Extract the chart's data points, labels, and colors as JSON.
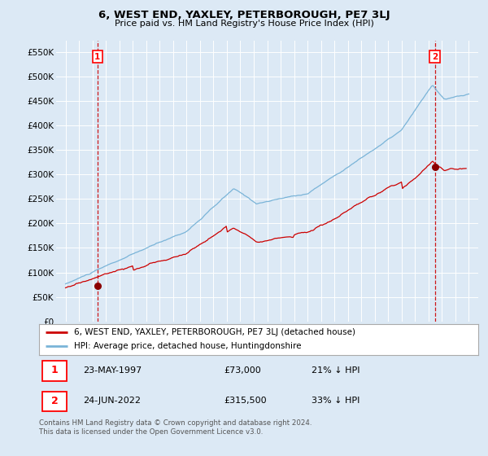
{
  "title": "6, WEST END, YAXLEY, PETERBOROUGH, PE7 3LJ",
  "subtitle": "Price paid vs. HM Land Registry's House Price Index (HPI)",
  "background_color": "#dce9f5",
  "plot_bg_color": "#dce9f5",
  "y_ticks": [
    0,
    50000,
    100000,
    150000,
    200000,
    250000,
    300000,
    350000,
    400000,
    450000,
    500000,
    550000
  ],
  "y_labels": [
    "£0",
    "£50K",
    "£100K",
    "£150K",
    "£200K",
    "£250K",
    "£300K",
    "£350K",
    "£400K",
    "£450K",
    "£500K",
    "£550K"
  ],
  "hpi_color": "#7ab4d8",
  "price_color": "#cc0000",
  "marker_color": "#8b0000",
  "dashed_line_color": "#cc0000",
  "sale1_year": 1997.38,
  "sale1_price": 73000,
  "sale1_label": "1",
  "sale2_year": 2022.47,
  "sale2_price": 315500,
  "sale2_label": "2",
  "legend_line1": "6, WEST END, YAXLEY, PETERBOROUGH, PE7 3LJ (detached house)",
  "legend_line2": "HPI: Average price, detached house, Huntingdonshire",
  "table_row1_num": "1",
  "table_row1_date": "23-MAY-1997",
  "table_row1_price": "£73,000",
  "table_row1_hpi": "21% ↓ HPI",
  "table_row2_num": "2",
  "table_row2_date": "24-JUN-2022",
  "table_row2_price": "£315,500",
  "table_row2_hpi": "33% ↓ HPI",
  "footer": "Contains HM Land Registry data © Crown copyright and database right 2024.\nThis data is licensed under the Open Government Licence v3.0."
}
